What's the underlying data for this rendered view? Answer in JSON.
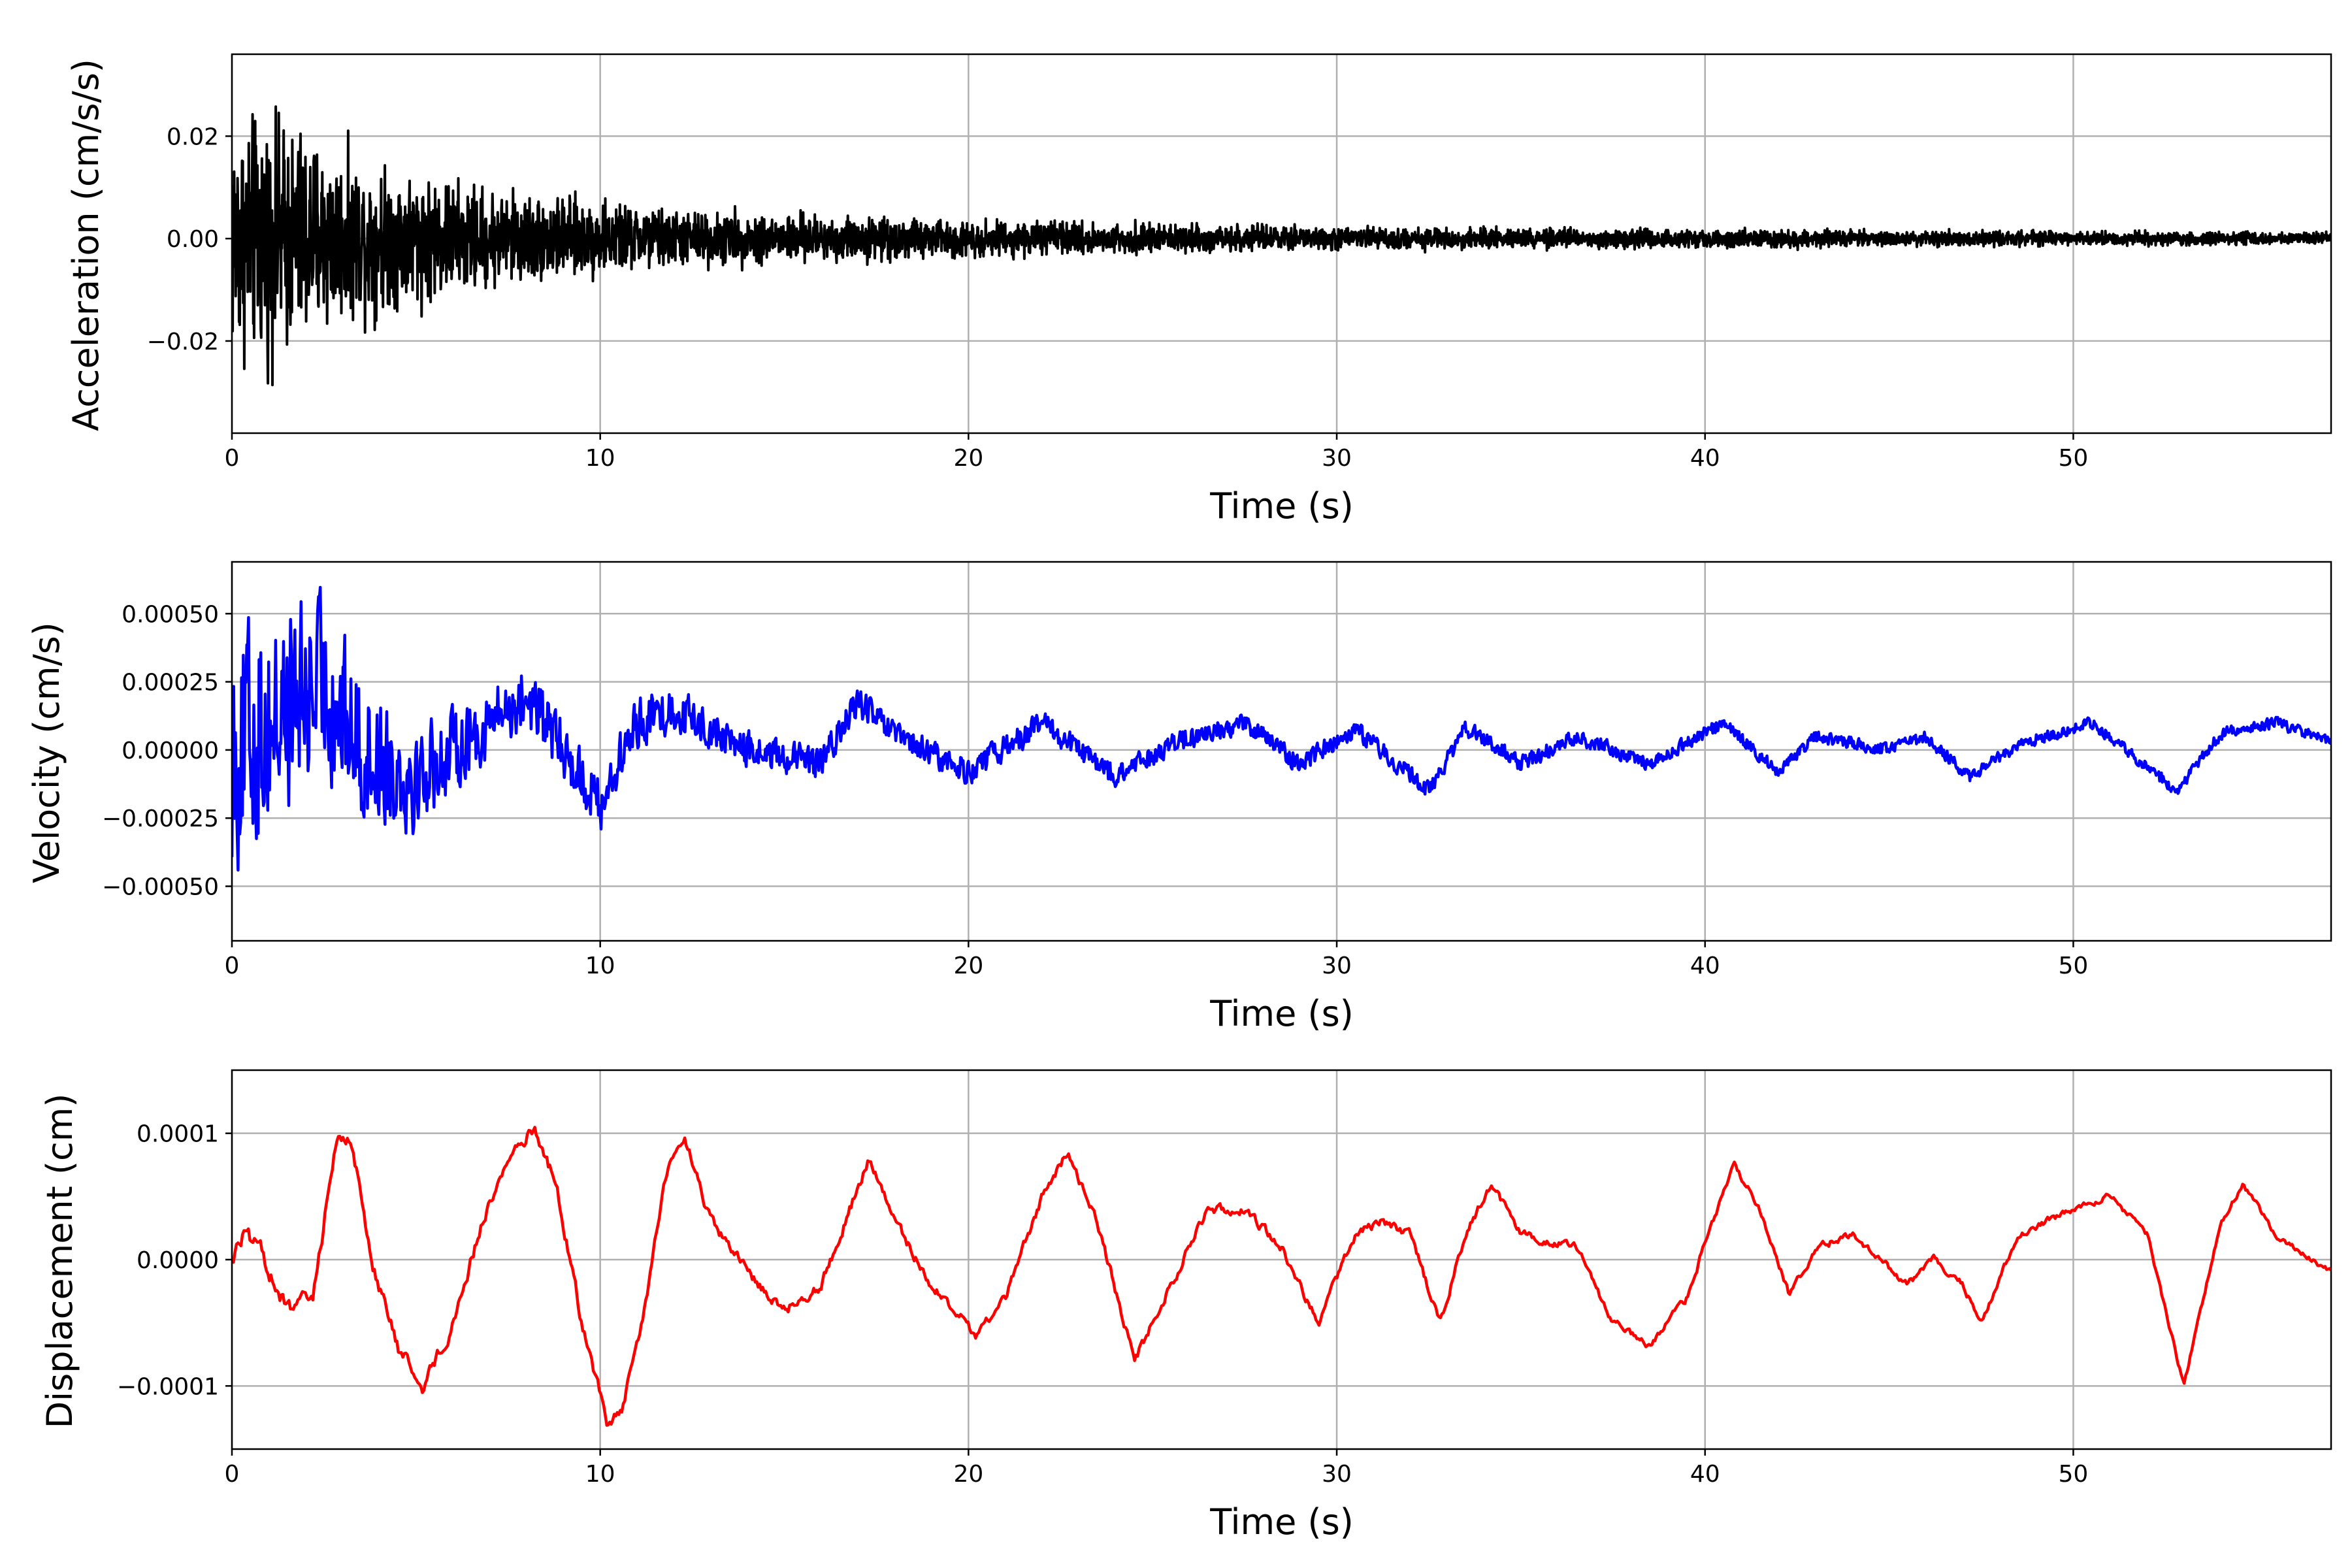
{
  "figure": {
    "background": "#ffffff",
    "grid": true
  },
  "chart_data": [
    {
      "type": "line",
      "title": "",
      "xlabel": "Time (s)",
      "ylabel": "Acceleration (cm/s/s)",
      "xlim": [
        0,
        57
      ],
      "ylim": [
        -0.038,
        0.036
      ],
      "xticks": [
        0,
        10,
        20,
        30,
        40,
        50
      ],
      "xtick_labels": [
        "0",
        "10",
        "20",
        "30",
        "40",
        "50"
      ],
      "yticks": [
        -0.02,
        0.0,
        0.02
      ],
      "ytick_labels": [
        "−0.02",
        "0.00",
        "0.02"
      ],
      "series": [
        {
          "color": "#000000",
          "kind": "noise_envelope",
          "envelope": [
            [
              0,
              0.03
            ],
            [
              1,
              0.029
            ],
            [
              2,
              0.027
            ],
            [
              3,
              0.02
            ],
            [
              5,
              0.016
            ],
            [
              7,
              0.012
            ],
            [
              10,
              0.009
            ],
            [
              12,
              0.007
            ],
            [
              15,
              0.006
            ],
            [
              20,
              0.0045
            ],
            [
              25,
              0.0035
            ],
            [
              30,
              0.0028
            ],
            [
              40,
              0.0022
            ],
            [
              50,
              0.0018
            ],
            [
              57,
              0.0015
            ]
          ]
        }
      ]
    },
    {
      "type": "line",
      "title": "",
      "xlabel": "Time (s)",
      "ylabel": "Velocity (cm/s)",
      "xlim": [
        0,
        57
      ],
      "ylim": [
        -0.0007,
        0.00069
      ],
      "xticks": [
        0,
        10,
        20,
        30,
        40,
        50
      ],
      "xtick_labels": [
        "0",
        "10",
        "20",
        "30",
        "40",
        "50"
      ],
      "yticks": [
        -0.0005,
        -0.00025,
        0.0,
        0.00025,
        0.0005
      ],
      "ytick_labels": [
        "−0.00050",
        "−0.00025",
        "0.00000",
        "0.00025",
        "0.00050"
      ],
      "series": [
        {
          "color": "#0000ff",
          "kind": "wave_plus_noise",
          "trend": [
            [
              0,
              0
            ],
            [
              2.5,
              0.00025
            ],
            [
              3.5,
              0
            ],
            [
              5,
              -0.0001
            ],
            [
              7,
              0.0001
            ],
            [
              8,
              0.0002
            ],
            [
              9,
              0
            ],
            [
              10,
              -0.0002
            ],
            [
              11,
              0.0001
            ],
            [
              12,
              0.00015
            ],
            [
              14,
              0
            ],
            [
              16,
              -5e-05
            ],
            [
              17,
              0.00018
            ],
            [
              18,
              5e-05
            ],
            [
              20,
              -8e-05
            ],
            [
              22,
              0.0001
            ],
            [
              24,
              -0.0001
            ],
            [
              25.5,
              2e-05
            ],
            [
              27.5,
              0.0001
            ],
            [
              29,
              -5e-05
            ],
            [
              30.5,
              8e-05
            ],
            [
              32.5,
              -0.00015
            ],
            [
              33.5,
              8e-05
            ],
            [
              35,
              -5e-05
            ],
            [
              36.5,
              5e-05
            ],
            [
              38.5,
              -5e-05
            ],
            [
              40.5,
              0.0001
            ],
            [
              42,
              -8e-05
            ],
            [
              43,
              5e-05
            ],
            [
              45,
              0
            ],
            [
              46,
              5e-05
            ],
            [
              47.2,
              -0.0001
            ],
            [
              48.5,
              2e-05
            ],
            [
              50.5,
              0.0001
            ],
            [
              52.8,
              -0.00015
            ],
            [
              54,
              6e-05
            ],
            [
              55.5,
              0.0001
            ],
            [
              57,
              3e-05
            ]
          ],
          "noise_envelope": [
            [
              0,
              0.00045
            ],
            [
              3,
              0.0003
            ],
            [
              6,
              0.00015
            ],
            [
              10,
              0.0001
            ],
            [
              15,
              6e-05
            ],
            [
              25,
              4e-05
            ],
            [
              40,
              2.5e-05
            ],
            [
              57,
              2e-05
            ]
          ]
        }
      ]
    },
    {
      "type": "line",
      "title": "",
      "xlabel": "Time (s)",
      "ylabel": "Displacement (cm)",
      "xlim": [
        0,
        57
      ],
      "ylim": [
        -0.00015,
        0.00015
      ],
      "xticks": [
        0,
        10,
        20,
        30,
        40,
        50
      ],
      "xtick_labels": [
        "0",
        "10",
        "20",
        "30",
        "40",
        "50"
      ],
      "yticks": [
        -0.0001,
        0.0,
        0.0001
      ],
      "ytick_labels": [
        "−0.0001",
        "0.0000",
        "0.0001"
      ],
      "series": [
        {
          "color": "#ff0000",
          "kind": "wave_plus_noise",
          "trend": [
            [
              0,
              0
            ],
            [
              0.3,
              2e-05
            ],
            [
              0.8,
              5e-06
            ],
            [
              1.5,
              -4e-05
            ],
            [
              2.2,
              -3e-05
            ],
            [
              2.8,
              9e-05
            ],
            [
              3.2,
              0.0001
            ],
            [
              3.8,
              0
            ],
            [
              4.5,
              -7e-05
            ],
            [
              5.2,
              -0.0001
            ],
            [
              6,
              -5e-05
            ],
            [
              6.8,
              3e-05
            ],
            [
              7.5,
              8e-05
            ],
            [
              8.2,
              0.000105
            ],
            [
              8.8,
              6e-05
            ],
            [
              9.5,
              -5e-05
            ],
            [
              10.2,
              -0.00013
            ],
            [
              10.6,
              -0.00012
            ],
            [
              11.2,
              -4e-05
            ],
            [
              11.8,
              7e-05
            ],
            [
              12.3,
              9.5e-05
            ],
            [
              13,
              3e-05
            ],
            [
              14,
              -1e-05
            ],
            [
              15,
              -4e-05
            ],
            [
              16,
              -2e-05
            ],
            [
              17.3,
              8e-05
            ],
            [
              18,
              3e-05
            ],
            [
              19,
              -2e-05
            ],
            [
              20.2,
              -6e-05
            ],
            [
              21,
              -3e-05
            ],
            [
              22,
              5e-05
            ],
            [
              22.7,
              8.5e-05
            ],
            [
              23.5,
              3e-05
            ],
            [
              24.5,
              -8e-05
            ],
            [
              25.5,
              -2e-05
            ],
            [
              26.5,
              4e-05
            ],
            [
              27.5,
              4e-05
            ],
            [
              28.5,
              1e-05
            ],
            [
              29.5,
              -5e-05
            ],
            [
              30.5,
              2e-05
            ],
            [
              31.2,
              3e-05
            ],
            [
              32,
              2e-05
            ],
            [
              32.8,
              -5e-05
            ],
            [
              33.5,
              2e-05
            ],
            [
              34.2,
              6e-05
            ],
            [
              35,
              2e-05
            ],
            [
              36.5,
              1e-05
            ],
            [
              37.5,
              -5e-05
            ],
            [
              38.5,
              -7e-05
            ],
            [
              39.5,
              -3e-05
            ],
            [
              40.2,
              3e-05
            ],
            [
              40.8,
              7.5e-05
            ],
            [
              41.5,
              4e-05
            ],
            [
              42.3,
              -3e-05
            ],
            [
              43,
              1e-05
            ],
            [
              44,
              2e-05
            ],
            [
              45.5,
              -2e-05
            ],
            [
              46.2,
              0
            ],
            [
              47,
              -2e-05
            ],
            [
              47.5,
              -5e-05
            ],
            [
              48.5,
              2e-05
            ],
            [
              50,
              4e-05
            ],
            [
              51,
              5e-05
            ],
            [
              52,
              2e-05
            ],
            [
              53,
              -0.0001
            ],
            [
              54,
              3e-05
            ],
            [
              54.6,
              6e-05
            ],
            [
              55.5,
              2e-05
            ],
            [
              57,
              -1e-05
            ]
          ],
          "noise_envelope": [
            [
              0,
              6e-06
            ],
            [
              10,
              4e-06
            ],
            [
              57,
              2e-06
            ]
          ]
        }
      ]
    }
  ]
}
